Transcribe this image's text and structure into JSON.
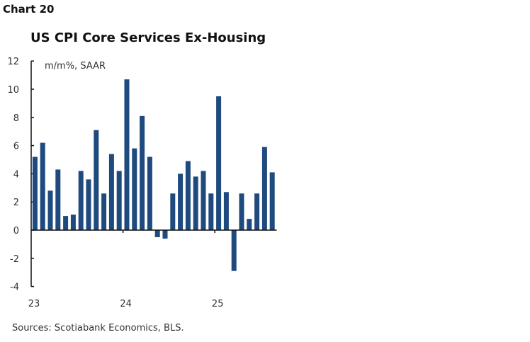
{
  "header": {
    "chart_label": "Chart 20"
  },
  "chart_data": {
    "type": "bar",
    "title": "US CPI Core Services Ex-Housing",
    "ylabel": "m/m%, SAAR",
    "ylim": [
      -4,
      12
    ],
    "yticks": [
      -4,
      -2,
      0,
      2,
      4,
      6,
      8,
      10,
      12
    ],
    "xtick_labels": [
      "23",
      "24",
      "25"
    ],
    "grid": false,
    "bar_color": "#1f4a7e",
    "categories": [
      "Jan 23",
      "Feb 23",
      "Mar 23",
      "Apr 23",
      "May 23",
      "Jun 23",
      "Jul 23",
      "Aug 23",
      "Sep 23",
      "Oct 23",
      "Nov 23",
      "Dec 23",
      "Jan 24",
      "Feb 24",
      "Mar 24",
      "Apr 24",
      "May 24",
      "Jun 24",
      "Jul 24",
      "Aug 24",
      "Sep 24",
      "Oct 24",
      "Nov 24",
      "Dec 24",
      "Jan 25",
      "Feb 25",
      "Mar 25",
      "Apr 25",
      "May 25",
      "Jun 25",
      "Jul 25",
      "Aug 25"
    ],
    "values": [
      5.2,
      6.2,
      2.8,
      4.3,
      1.0,
      1.1,
      4.2,
      3.6,
      7.1,
      2.6,
      5.4,
      4.2,
      10.7,
      5.8,
      8.1,
      5.2,
      -0.5,
      -0.6,
      2.6,
      4.0,
      4.9,
      3.8,
      4.2,
      2.6,
      9.5,
      2.7,
      -2.9,
      2.6,
      0.8,
      2.6,
      5.9,
      4.1
    ]
  },
  "footer": {
    "source": "Sources: Scotiabank Economics, BLS."
  }
}
